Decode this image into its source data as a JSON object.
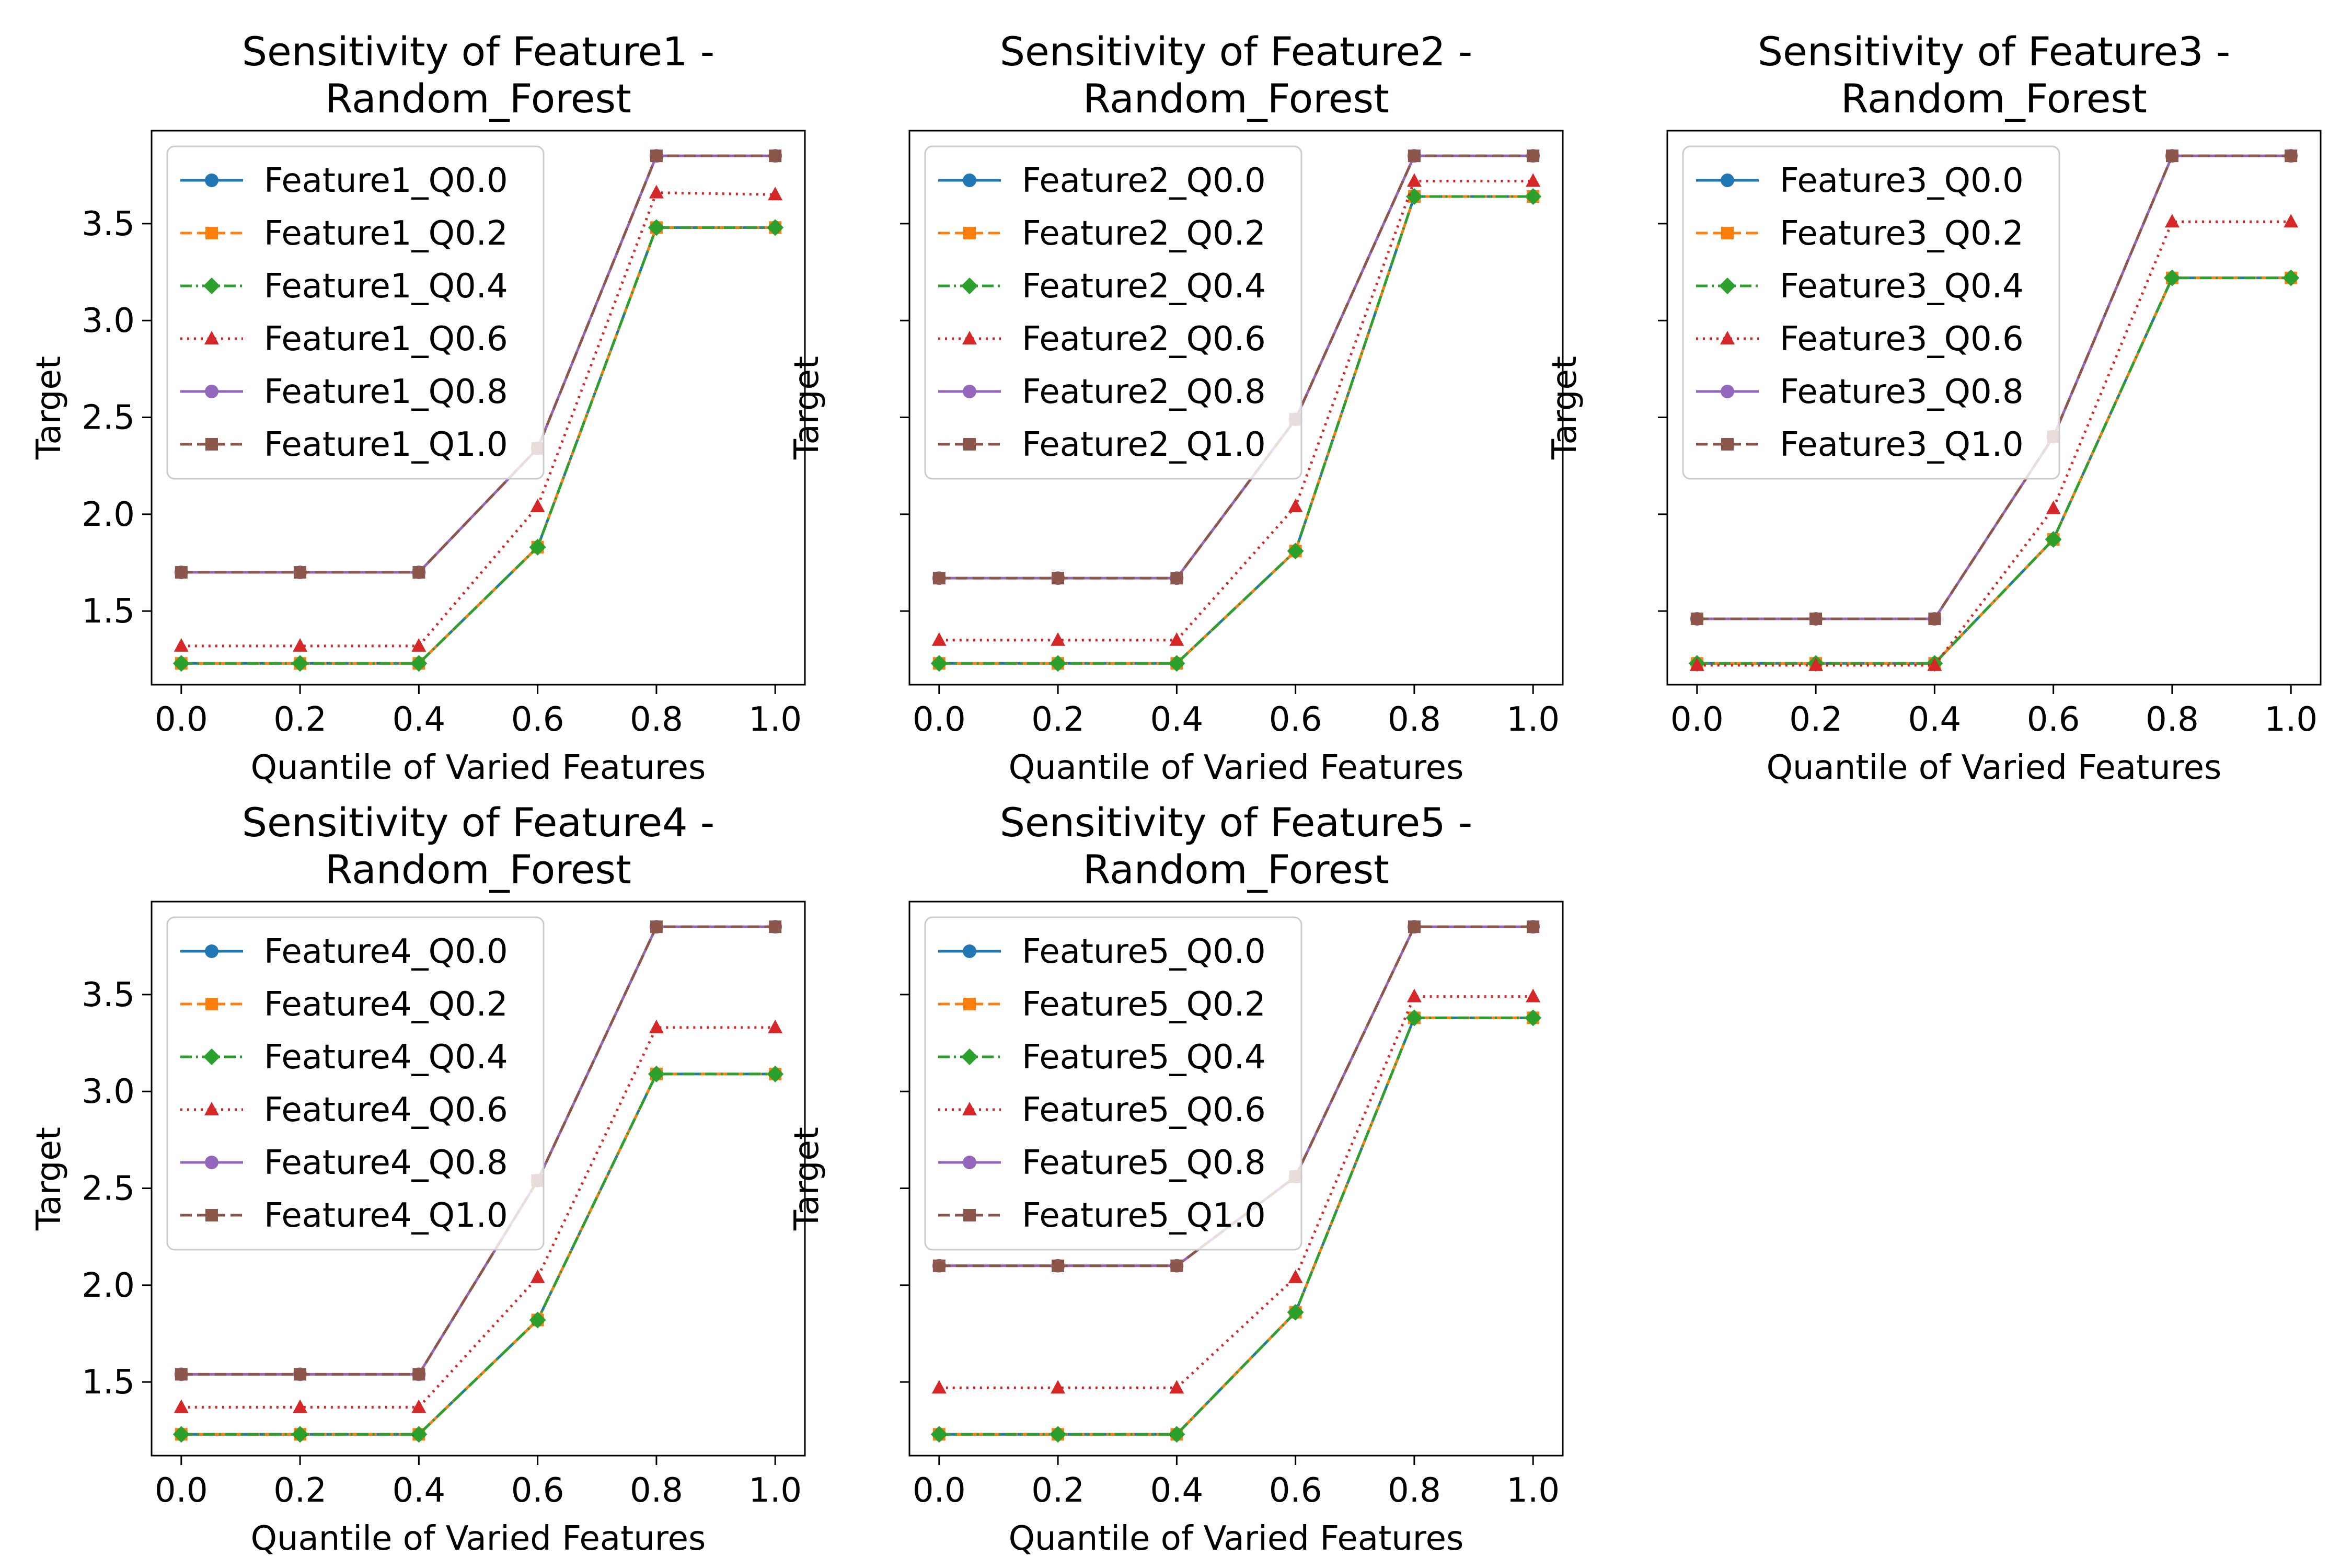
{
  "chart_data": [
    {
      "type": "line",
      "title": "Sensitivity of Feature1 -\nRandom_Forest",
      "xlabel": "Quantile of Varied Features",
      "ylabel": "Target",
      "x": [
        0.0,
        0.2,
        0.4,
        0.6,
        0.8,
        1.0
      ],
      "xlim": [
        -0.05,
        1.05
      ],
      "ylim": [
        1.12,
        3.98
      ],
      "x_ticks": [
        "0.0",
        "0.2",
        "0.4",
        "0.6",
        "0.8",
        "1.0"
      ],
      "y_ticks": [
        "1.5",
        "2.0",
        "2.5",
        "3.0",
        "3.5"
      ],
      "show_y_tick_labels": true,
      "grid": false,
      "legend_position": "upper-left",
      "series": [
        {
          "name": "Feature1_Q0.0",
          "values": [
            1.23,
            1.23,
            1.23,
            1.83,
            3.48,
            3.48
          ]
        },
        {
          "name": "Feature1_Q0.2",
          "values": [
            1.23,
            1.23,
            1.23,
            1.83,
            3.48,
            3.48
          ]
        },
        {
          "name": "Feature1_Q0.4",
          "values": [
            1.23,
            1.23,
            1.23,
            1.83,
            3.48,
            3.48
          ]
        },
        {
          "name": "Feature1_Q0.6",
          "values": [
            1.32,
            1.32,
            1.32,
            2.04,
            3.66,
            3.65
          ]
        },
        {
          "name": "Feature1_Q0.8",
          "values": [
            1.7,
            1.7,
            1.7,
            2.34,
            3.85,
            3.85
          ]
        },
        {
          "name": "Feature1_Q1.0",
          "values": [
            1.7,
            1.7,
            1.7,
            2.34,
            3.85,
            3.85
          ]
        }
      ]
    },
    {
      "type": "line",
      "title": "Sensitivity of Feature2 -\nRandom_Forest",
      "xlabel": "Quantile of Varied Features",
      "ylabel": "Target",
      "x": [
        0.0,
        0.2,
        0.4,
        0.6,
        0.8,
        1.0
      ],
      "xlim": [
        -0.05,
        1.05
      ],
      "ylim": [
        1.12,
        3.98
      ],
      "x_ticks": [
        "0.0",
        "0.2",
        "0.4",
        "0.6",
        "0.8",
        "1.0"
      ],
      "y_ticks": [
        "1.5",
        "2.0",
        "2.5",
        "3.0",
        "3.5"
      ],
      "show_y_tick_labels": false,
      "grid": false,
      "legend_position": "upper-left",
      "series": [
        {
          "name": "Feature2_Q0.0",
          "values": [
            1.23,
            1.23,
            1.23,
            1.81,
            3.64,
            3.64
          ]
        },
        {
          "name": "Feature2_Q0.2",
          "values": [
            1.23,
            1.23,
            1.23,
            1.81,
            3.64,
            3.64
          ]
        },
        {
          "name": "Feature2_Q0.4",
          "values": [
            1.23,
            1.23,
            1.23,
            1.81,
            3.64,
            3.64
          ]
        },
        {
          "name": "Feature2_Q0.6",
          "values": [
            1.35,
            1.35,
            1.35,
            2.04,
            3.72,
            3.72
          ]
        },
        {
          "name": "Feature2_Q0.8",
          "values": [
            1.67,
            1.67,
            1.67,
            2.49,
            3.85,
            3.85
          ]
        },
        {
          "name": "Feature2_Q1.0",
          "values": [
            1.67,
            1.67,
            1.67,
            2.49,
            3.85,
            3.85
          ]
        }
      ]
    },
    {
      "type": "line",
      "title": "Sensitivity of Feature3 -\nRandom_Forest",
      "xlabel": "Quantile of Varied Features",
      "ylabel": "Target",
      "x": [
        0.0,
        0.2,
        0.4,
        0.6,
        0.8,
        1.0
      ],
      "xlim": [
        -0.05,
        1.05
      ],
      "ylim": [
        1.12,
        3.98
      ],
      "x_ticks": [
        "0.0",
        "0.2",
        "0.4",
        "0.6",
        "0.8",
        "1.0"
      ],
      "y_ticks": [
        "1.5",
        "2.0",
        "2.5",
        "3.0",
        "3.5"
      ],
      "show_y_tick_labels": false,
      "grid": false,
      "legend_position": "upper-left",
      "series": [
        {
          "name": "Feature3_Q0.0",
          "values": [
            1.23,
            1.23,
            1.23,
            1.87,
            3.22,
            3.22
          ]
        },
        {
          "name": "Feature3_Q0.2",
          "values": [
            1.23,
            1.23,
            1.23,
            1.87,
            3.22,
            3.22
          ]
        },
        {
          "name": "Feature3_Q0.4",
          "values": [
            1.23,
            1.23,
            1.23,
            1.87,
            3.22,
            3.22
          ]
        },
        {
          "name": "Feature3_Q0.6",
          "values": [
            1.22,
            1.22,
            1.22,
            2.03,
            3.51,
            3.51
          ]
        },
        {
          "name": "Feature3_Q0.8",
          "values": [
            1.46,
            1.46,
            1.46,
            2.4,
            3.85,
            3.85
          ]
        },
        {
          "name": "Feature3_Q1.0",
          "values": [
            1.46,
            1.46,
            1.46,
            2.4,
            3.85,
            3.85
          ]
        }
      ]
    },
    {
      "type": "line",
      "title": "Sensitivity of Feature4 -\nRandom_Forest",
      "xlabel": "Quantile of Varied Features",
      "ylabel": "Target",
      "x": [
        0.0,
        0.2,
        0.4,
        0.6,
        0.8,
        1.0
      ],
      "xlim": [
        -0.05,
        1.05
      ],
      "ylim": [
        1.12,
        3.98
      ],
      "x_ticks": [
        "0.0",
        "0.2",
        "0.4",
        "0.6",
        "0.8",
        "1.0"
      ],
      "y_ticks": [
        "1.5",
        "2.0",
        "2.5",
        "3.0",
        "3.5"
      ],
      "show_y_tick_labels": true,
      "grid": false,
      "legend_position": "upper-left",
      "series": [
        {
          "name": "Feature4_Q0.0",
          "values": [
            1.23,
            1.23,
            1.23,
            1.82,
            3.09,
            3.09
          ]
        },
        {
          "name": "Feature4_Q0.2",
          "values": [
            1.23,
            1.23,
            1.23,
            1.82,
            3.09,
            3.09
          ]
        },
        {
          "name": "Feature4_Q0.4",
          "values": [
            1.23,
            1.23,
            1.23,
            1.82,
            3.09,
            3.09
          ]
        },
        {
          "name": "Feature4_Q0.6",
          "values": [
            1.37,
            1.37,
            1.37,
            2.04,
            3.33,
            3.33
          ]
        },
        {
          "name": "Feature4_Q0.8",
          "values": [
            1.54,
            1.54,
            1.54,
            2.54,
            3.85,
            3.85
          ]
        },
        {
          "name": "Feature4_Q1.0",
          "values": [
            1.54,
            1.54,
            1.54,
            2.54,
            3.85,
            3.85
          ]
        }
      ]
    },
    {
      "type": "line",
      "title": "Sensitivity of Feature5 -\nRandom_Forest",
      "xlabel": "Quantile of Varied Features",
      "ylabel": "Target",
      "x": [
        0.0,
        0.2,
        0.4,
        0.6,
        0.8,
        1.0
      ],
      "xlim": [
        -0.05,
        1.05
      ],
      "ylim": [
        1.12,
        3.98
      ],
      "x_ticks": [
        "0.0",
        "0.2",
        "0.4",
        "0.6",
        "0.8",
        "1.0"
      ],
      "y_ticks": [
        "1.5",
        "2.0",
        "2.5",
        "3.0",
        "3.5"
      ],
      "show_y_tick_labels": false,
      "grid": false,
      "legend_position": "upper-left",
      "series": [
        {
          "name": "Feature5_Q0.0",
          "values": [
            1.23,
            1.23,
            1.23,
            1.86,
            3.38,
            3.38
          ]
        },
        {
          "name": "Feature5_Q0.2",
          "values": [
            1.23,
            1.23,
            1.23,
            1.86,
            3.38,
            3.38
          ]
        },
        {
          "name": "Feature5_Q0.4",
          "values": [
            1.23,
            1.23,
            1.23,
            1.86,
            3.38,
            3.38
          ]
        },
        {
          "name": "Feature5_Q0.6",
          "values": [
            1.47,
            1.47,
            1.47,
            2.04,
            3.49,
            3.49
          ]
        },
        {
          "name": "Feature5_Q0.8",
          "values": [
            2.1,
            2.1,
            2.1,
            2.56,
            3.85,
            3.85
          ]
        },
        {
          "name": "Feature5_Q1.0",
          "values": [
            2.1,
            2.1,
            2.1,
            2.56,
            3.85,
            3.85
          ]
        }
      ]
    }
  ],
  "series_styles": [
    {
      "color": "#1f77b4",
      "dash": "solid",
      "marker": "circle"
    },
    {
      "color": "#ff7f0e",
      "dash": "dashed",
      "marker": "square"
    },
    {
      "color": "#2ca02c",
      "dash": "dashdot",
      "marker": "diamond"
    },
    {
      "color": "#d62728",
      "dash": "dotted",
      "marker": "triangle"
    },
    {
      "color": "#9467bd",
      "dash": "solid",
      "marker": "circle"
    },
    {
      "color": "#8c564b",
      "dash": "dashed",
      "marker": "square"
    }
  ]
}
